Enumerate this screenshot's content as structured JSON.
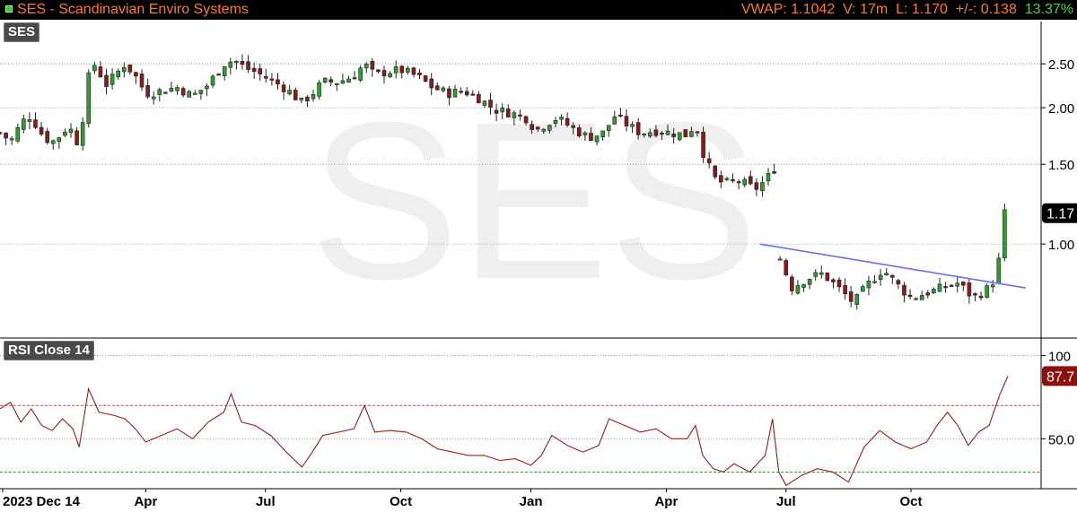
{
  "header": {
    "title": "SES - Scandinavian Enviro Systems",
    "vwap": "VWAP: 1.1042",
    "volume": "V: 17m",
    "last": "L: 1.170",
    "change": "+/-: 0.138",
    "change_pct": "13.37%"
  },
  "watermark": "SES",
  "panels": {
    "price_label": "SES",
    "rsi_label": "RSI Close 14"
  },
  "x_axis": {
    "labels": [
      "2023 Dec 14",
      "Apr",
      "Jul",
      "Oct",
      "Jan",
      "Apr",
      "Jul",
      "Oct"
    ]
  },
  "price_axis": {
    "ticks": [
      "2.50",
      "2.00",
      "1.50",
      "1.00"
    ],
    "last_tag": "1.17"
  },
  "rsi_axis": {
    "ticks": [
      "100",
      "50.0"
    ],
    "last_tag": "87.7"
  },
  "colors": {
    "up": "#2e9e2e",
    "down": "#8b1a1a",
    "rsi_line": "#9b1c1c",
    "trendline": "#6b6bff",
    "overbought": "#e23b3b",
    "oversold": "#2e9e2e",
    "grid": "#6aa0a0"
  },
  "chart_data": [
    {
      "type": "candlestick",
      "title": "SES",
      "scale": "log",
      "y_ticks": [
        2.5,
        2.0,
        1.5,
        1.0
      ],
      "ylim": [
        0.62,
        3.1
      ],
      "last_value": 1.17,
      "x_tick_labels": [
        "2023 Dec 14",
        "Apr",
        "Jul",
        "Oct",
        "Jan",
        "Apr",
        "Jul",
        "Oct"
      ],
      "close_path": [
        {
          "x": 0,
          "y": 1.76
        },
        {
          "x": 0.005,
          "y": 1.72
        },
        {
          "x": 0.012,
          "y": 1.7
        },
        {
          "x": 0.02,
          "y": 1.85
        },
        {
          "x": 0.028,
          "y": 1.92
        },
        {
          "x": 0.035,
          "y": 1.83
        },
        {
          "x": 0.042,
          "y": 1.72
        },
        {
          "x": 0.05,
          "y": 1.68
        },
        {
          "x": 0.058,
          "y": 1.74
        },
        {
          "x": 0.065,
          "y": 1.82
        },
        {
          "x": 0.072,
          "y": 1.74
        },
        {
          "x": 0.076,
          "y": 1.62
        },
        {
          "x": 0.082,
          "y": 2.1
        },
        {
          "x": 0.088,
          "y": 2.55
        },
        {
          "x": 0.095,
          "y": 2.4
        },
        {
          "x": 0.102,
          "y": 2.25
        },
        {
          "x": 0.11,
          "y": 2.35
        },
        {
          "x": 0.12,
          "y": 2.5
        },
        {
          "x": 0.13,
          "y": 2.35
        },
        {
          "x": 0.14,
          "y": 2.15
        },
        {
          "x": 0.155,
          "y": 2.18
        },
        {
          "x": 0.17,
          "y": 2.22
        },
        {
          "x": 0.185,
          "y": 2.12
        },
        {
          "x": 0.2,
          "y": 2.25
        },
        {
          "x": 0.215,
          "y": 2.5
        },
        {
          "x": 0.225,
          "y": 2.55
        },
        {
          "x": 0.235,
          "y": 2.45
        },
        {
          "x": 0.245,
          "y": 2.4
        },
        {
          "x": 0.26,
          "y": 2.3
        },
        {
          "x": 0.275,
          "y": 2.2
        },
        {
          "x": 0.29,
          "y": 2.05
        },
        {
          "x": 0.3,
          "y": 2.15
        },
        {
          "x": 0.31,
          "y": 2.28
        },
        {
          "x": 0.325,
          "y": 2.28
        },
        {
          "x": 0.34,
          "y": 2.35
        },
        {
          "x": 0.35,
          "y": 2.5
        },
        {
          "x": 0.36,
          "y": 2.35
        },
        {
          "x": 0.37,
          "y": 2.4
        },
        {
          "x": 0.385,
          "y": 2.42
        },
        {
          "x": 0.4,
          "y": 2.35
        },
        {
          "x": 0.415,
          "y": 2.22
        },
        {
          "x": 0.43,
          "y": 2.15
        },
        {
          "x": 0.445,
          "y": 2.18
        },
        {
          "x": 0.46,
          "y": 2.1
        },
        {
          "x": 0.475,
          "y": 1.98
        },
        {
          "x": 0.49,
          "y": 1.95
        },
        {
          "x": 0.505,
          "y": 1.9
        },
        {
          "x": 0.515,
          "y": 1.78
        },
        {
          "x": 0.525,
          "y": 1.85
        },
        {
          "x": 0.535,
          "y": 1.9
        },
        {
          "x": 0.55,
          "y": 1.8
        },
        {
          "x": 0.565,
          "y": 1.72
        },
        {
          "x": 0.58,
          "y": 1.76
        },
        {
          "x": 0.59,
          "y": 1.92
        },
        {
          "x": 0.6,
          "y": 1.85
        },
        {
          "x": 0.615,
          "y": 1.76
        },
        {
          "x": 0.63,
          "y": 1.78
        },
        {
          "x": 0.645,
          "y": 1.76
        },
        {
          "x": 0.66,
          "y": 1.74
        },
        {
          "x": 0.668,
          "y": 1.85
        },
        {
          "x": 0.675,
          "y": 1.6
        },
        {
          "x": 0.685,
          "y": 1.4
        },
        {
          "x": 0.695,
          "y": 1.36
        },
        {
          "x": 0.71,
          "y": 1.38
        },
        {
          "x": 0.725,
          "y": 1.32
        },
        {
          "x": 0.735,
          "y": 1.38
        },
        {
          "x": 0.745,
          "y": 1.48
        },
        {
          "x": 0.745,
          "y": 0.98
        },
        {
          "x": 0.76,
          "y": 0.8
        },
        {
          "x": 0.775,
          "y": 0.84
        },
        {
          "x": 0.79,
          "y": 0.86
        },
        {
          "x": 0.805,
          "y": 0.8
        },
        {
          "x": 0.82,
          "y": 0.74
        },
        {
          "x": 0.835,
          "y": 0.82
        },
        {
          "x": 0.848,
          "y": 0.88
        },
        {
          "x": 0.86,
          "y": 0.82
        },
        {
          "x": 0.875,
          "y": 0.76
        },
        {
          "x": 0.89,
          "y": 0.78
        },
        {
          "x": 0.905,
          "y": 0.8
        },
        {
          "x": 0.92,
          "y": 0.82
        },
        {
          "x": 0.935,
          "y": 0.76
        },
        {
          "x": 0.95,
          "y": 0.8
        },
        {
          "x": 0.958,
          "y": 0.86
        },
        {
          "x": 0.965,
          "y": 1.17
        }
      ],
      "trendline": [
        {
          "x": 0.73,
          "y": 1.0
        },
        {
          "x": 0.985,
          "y": 0.8
        }
      ]
    },
    {
      "type": "line",
      "title": "RSI Close 14",
      "y_ticks": [
        100,
        50
      ],
      "ylim": [
        20,
        110
      ],
      "last_value": 87.7,
      "levels": [
        70,
        30
      ],
      "series": [
        {
          "values": [
            {
              "x": 0,
              "y": 68
            },
            {
              "x": 0.01,
              "y": 72
            },
            {
              "x": 0.02,
              "y": 60
            },
            {
              "x": 0.03,
              "y": 68
            },
            {
              "x": 0.04,
              "y": 58
            },
            {
              "x": 0.05,
              "y": 55
            },
            {
              "x": 0.06,
              "y": 62
            },
            {
              "x": 0.07,
              "y": 56
            },
            {
              "x": 0.076,
              "y": 45
            },
            {
              "x": 0.085,
              "y": 80
            },
            {
              "x": 0.095,
              "y": 66
            },
            {
              "x": 0.11,
              "y": 64
            },
            {
              "x": 0.12,
              "y": 62
            },
            {
              "x": 0.13,
              "y": 56
            },
            {
              "x": 0.14,
              "y": 48
            },
            {
              "x": 0.155,
              "y": 52
            },
            {
              "x": 0.17,
              "y": 56
            },
            {
              "x": 0.185,
              "y": 50
            },
            {
              "x": 0.2,
              "y": 60
            },
            {
              "x": 0.215,
              "y": 66
            },
            {
              "x": 0.222,
              "y": 77
            },
            {
              "x": 0.232,
              "y": 60
            },
            {
              "x": 0.245,
              "y": 58
            },
            {
              "x": 0.26,
              "y": 52
            },
            {
              "x": 0.275,
              "y": 42
            },
            {
              "x": 0.29,
              "y": 33
            },
            {
              "x": 0.3,
              "y": 42
            },
            {
              "x": 0.31,
              "y": 52
            },
            {
              "x": 0.325,
              "y": 54
            },
            {
              "x": 0.34,
              "y": 56
            },
            {
              "x": 0.35,
              "y": 70
            },
            {
              "x": 0.36,
              "y": 54
            },
            {
              "x": 0.375,
              "y": 55
            },
            {
              "x": 0.39,
              "y": 54
            },
            {
              "x": 0.405,
              "y": 50
            },
            {
              "x": 0.42,
              "y": 44
            },
            {
              "x": 0.435,
              "y": 42
            },
            {
              "x": 0.45,
              "y": 40
            },
            {
              "x": 0.465,
              "y": 40
            },
            {
              "x": 0.48,
              "y": 37
            },
            {
              "x": 0.495,
              "y": 38
            },
            {
              "x": 0.51,
              "y": 34
            },
            {
              "x": 0.52,
              "y": 40
            },
            {
              "x": 0.53,
              "y": 52
            },
            {
              "x": 0.545,
              "y": 46
            },
            {
              "x": 0.56,
              "y": 42
            },
            {
              "x": 0.575,
              "y": 46
            },
            {
              "x": 0.585,
              "y": 62
            },
            {
              "x": 0.6,
              "y": 58
            },
            {
              "x": 0.615,
              "y": 54
            },
            {
              "x": 0.63,
              "y": 56
            },
            {
              "x": 0.645,
              "y": 50
            },
            {
              "x": 0.66,
              "y": 50
            },
            {
              "x": 0.668,
              "y": 58
            },
            {
              "x": 0.675,
              "y": 40
            },
            {
              "x": 0.685,
              "y": 32
            },
            {
              "x": 0.695,
              "y": 30
            },
            {
              "x": 0.705,
              "y": 35
            },
            {
              "x": 0.72,
              "y": 30
            },
            {
              "x": 0.735,
              "y": 40
            },
            {
              "x": 0.742,
              "y": 62
            },
            {
              "x": 0.748,
              "y": 30
            },
            {
              "x": 0.755,
              "y": 22
            },
            {
              "x": 0.77,
              "y": 28
            },
            {
              "x": 0.785,
              "y": 32
            },
            {
              "x": 0.8,
              "y": 30
            },
            {
              "x": 0.815,
              "y": 24
            },
            {
              "x": 0.83,
              "y": 45
            },
            {
              "x": 0.845,
              "y": 55
            },
            {
              "x": 0.86,
              "y": 48
            },
            {
              "x": 0.875,
              "y": 44
            },
            {
              "x": 0.89,
              "y": 48
            },
            {
              "x": 0.9,
              "y": 58
            },
            {
              "x": 0.91,
              "y": 66
            },
            {
              "x": 0.92,
              "y": 58
            },
            {
              "x": 0.93,
              "y": 46
            },
            {
              "x": 0.94,
              "y": 54
            },
            {
              "x": 0.95,
              "y": 58
            },
            {
              "x": 0.96,
              "y": 76
            },
            {
              "x": 0.968,
              "y": 87.7
            }
          ]
        }
      ]
    }
  ]
}
